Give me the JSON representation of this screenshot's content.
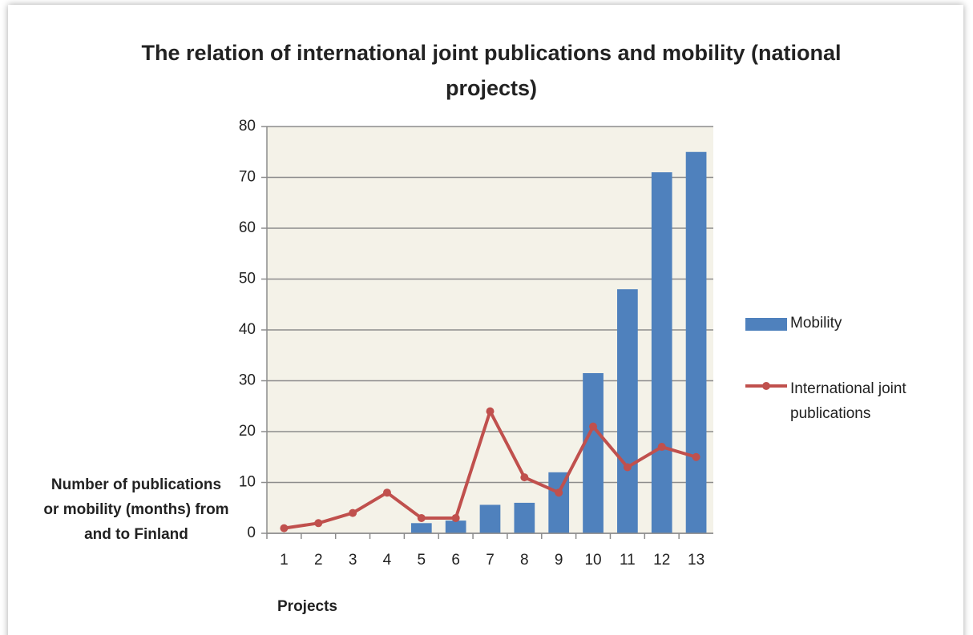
{
  "chart_data": {
    "type": "bar",
    "title": "The relation of international joint publications and mobility (national projects)",
    "ylabel": "Number of publications or mobility (months) from and to Finland",
    "xlabel": "Projects",
    "categories": [
      "1",
      "2",
      "3",
      "4",
      "5",
      "6",
      "7",
      "8",
      "9",
      "10",
      "11",
      "12",
      "13"
    ],
    "series": [
      {
        "name": "Mobility",
        "type": "bar",
        "color": "#4f81bd",
        "values": [
          0,
          0,
          0,
          0,
          2,
          2.5,
          5.6,
          6,
          12,
          31.5,
          48,
          71,
          75
        ]
      },
      {
        "name": "International joint publications",
        "type": "line",
        "color": "#c0504d",
        "values": [
          1,
          2,
          4,
          8,
          3,
          3,
          24,
          11,
          8,
          21,
          13,
          17,
          15
        ]
      }
    ],
    "ylim": [
      0,
      80
    ],
    "yticks": [
      0,
      10,
      20,
      30,
      40,
      50,
      60,
      70,
      80
    ],
    "grid": true,
    "legend": "right"
  }
}
